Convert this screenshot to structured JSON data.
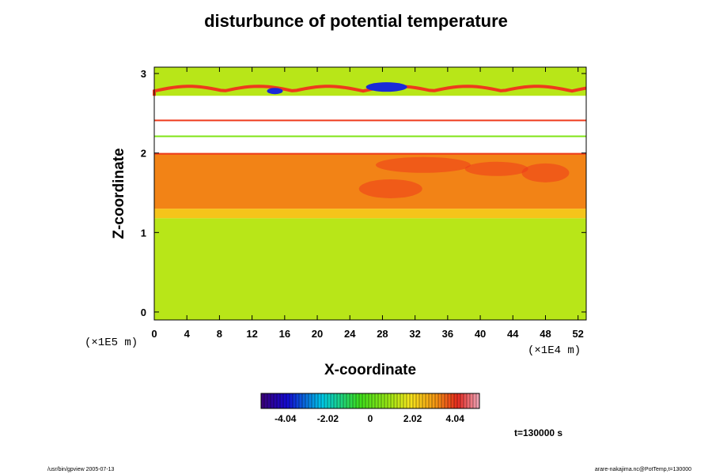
{
  "chart_data": {
    "type": "heatmap",
    "title": "disturbunce of potential temperature",
    "xlabel": "X-coordinate",
    "ylabel": "Z-coordinate",
    "x_unit": "(×1E4 m)",
    "y_unit": "(×1E5 m)",
    "xlim": [
      0,
      53
    ],
    "ylim": [
      -0.1,
      3.08
    ],
    "x_ticks": [
      "0",
      "4",
      "8",
      "12",
      "16",
      "20",
      "24",
      "28",
      "32",
      "36",
      "40",
      "44",
      "48",
      "52"
    ],
    "y_ticks": [
      "0",
      "1",
      "2",
      "3"
    ],
    "colorbar": {
      "range": [
        -5.2,
        5.2
      ],
      "ticks": [
        "-4.04",
        "-2.02",
        "0",
        "2.02",
        "4.04"
      ],
      "colormap": "rainbow (purple-blue-cyan-green-yellow-red-pink)"
    },
    "layers": [
      {
        "z_range": [
          -0.1,
          1.18
        ],
        "description": "green",
        "value": 1.2
      },
      {
        "z_range": [
          1.18,
          1.3
        ],
        "description": "yellow",
        "value": 2.4
      },
      {
        "z_range": [
          1.3,
          2.0
        ],
        "description": "orange/red",
        "value": 3.3
      },
      {
        "z_range": [
          2.0,
          2.2
        ],
        "description": "missing (white)",
        "value": null
      },
      {
        "z_range": [
          2.22,
          2.42
        ],
        "description": "thin lines at boundaries",
        "value": null
      },
      {
        "z_range": [
          2.42,
          2.72
        ],
        "description": "missing (white)",
        "value": null
      },
      {
        "z_range": [
          2.72,
          3.08
        ],
        "description": "green with red/blue waves",
        "value": 1.2
      }
    ],
    "annotation": "t=130000 s"
  },
  "footer": {
    "left": "/usr/bin/gpview 2005-07-13",
    "right": "arare-nakajima.nc@PotTemp,t=130000"
  },
  "colors": {
    "low_green": "#5ce80a",
    "mid_yellow": "#f2d12b",
    "high_orange": "#f29a14",
    "red": "#ee3a1c",
    "blue": "#1a2ad8"
  }
}
